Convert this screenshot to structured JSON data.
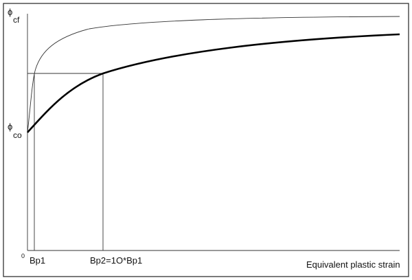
{
  "axis_labels": {
    "y_top_symbol": "ϕ",
    "y_top_sub": "cf",
    "y_mid_symbol": "ϕ",
    "y_mid_sub": "co",
    "origin": "0",
    "x_label": "Equivalent plastic strain"
  },
  "x_markers": [
    "Bp1",
    "Bp2=1O*Bp1"
  ]
}
